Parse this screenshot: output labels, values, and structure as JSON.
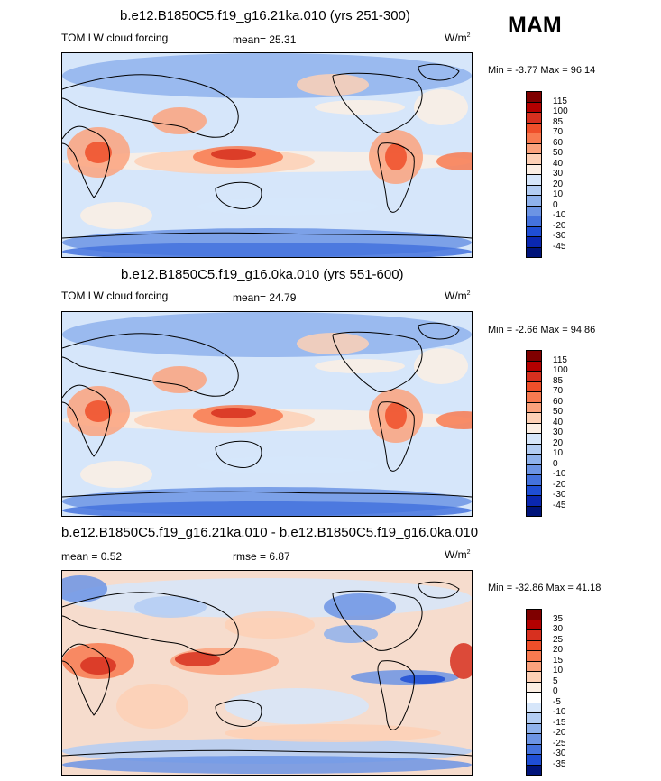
{
  "season": "MAM",
  "units_suffix": "2",
  "panels": [
    {
      "title": "b.e12.B1850C5.f19_g16.21ka.010 (yrs 251-300)",
      "left_label": "TOM LW cloud forcing",
      "mid_label": "mean=  25.31",
      "units": "W/m",
      "minmax": "Min =  -3.77 Max =  96.14"
    },
    {
      "title": "b.e12.B1850C5.f19_g16.0ka.010 (yrs 551-600)",
      "left_label": "TOM LW cloud forcing",
      "mid_label": "mean=  24.79",
      "units": "W/m",
      "minmax": "Min =  -2.66 Max =  94.86"
    },
    {
      "title": "b.e12.B1850C5.f19_g16.21ka.010 - b.e12.B1850C5.f19_g16.0ka.010",
      "left_label": "mean =   0.52",
      "mid_label": "rmse =   6.87",
      "units": "W/m",
      "minmax": "Min = -32.86 Max =  41.18"
    }
  ],
  "chart_data": [
    {
      "type": "heatmap",
      "title": "b.e12.B1850C5.f19_g16.21ka.010 (yrs 251-300)",
      "variable": "TOM LW cloud forcing",
      "mean": 25.31,
      "min": -3.77,
      "max": 96.14,
      "units": "W/m2",
      "colorbar_levels": [
        "115",
        "100",
        "85",
        "70",
        "60",
        "50",
        "40",
        "30",
        "20",
        "10",
        "0",
        "-10",
        "-20",
        "-30",
        "-45"
      ],
      "colors": [
        "#7f0000",
        "#b30000",
        "#d7301f",
        "#ef4f2a",
        "#f87a50",
        "#fba27c",
        "#fdd0b5",
        "#fbeee3",
        "#d6e6fa",
        "#b3cdf3",
        "#8fb2ec",
        "#6c94e4",
        "#4472dd",
        "#1f4ed4",
        "#0a27b0",
        "#00147a"
      ]
    },
    {
      "type": "heatmap",
      "title": "b.e12.B1850C5.f19_g16.0ka.010 (yrs 551-600)",
      "variable": "TOM LW cloud forcing",
      "mean": 24.79,
      "min": -2.66,
      "max": 94.86,
      "units": "W/m2",
      "colorbar_levels": [
        "115",
        "100",
        "85",
        "70",
        "60",
        "50",
        "40",
        "30",
        "20",
        "10",
        "0",
        "-10",
        "-20",
        "-30",
        "-45"
      ],
      "colors": [
        "#7f0000",
        "#b30000",
        "#d7301f",
        "#ef4f2a",
        "#f87a50",
        "#fba27c",
        "#fdd0b5",
        "#fbeee3",
        "#d6e6fa",
        "#b3cdf3",
        "#8fb2ec",
        "#6c94e4",
        "#4472dd",
        "#1f4ed4",
        "#0a27b0",
        "#00147a"
      ]
    },
    {
      "type": "heatmap",
      "title": "b.e12.B1850C5.f19_g16.21ka.010 - b.e12.B1850C5.f19_g16.0ka.010",
      "mean": 0.52,
      "rmse": 6.87,
      "min": -32.86,
      "max": 41.18,
      "units": "W/m2",
      "colorbar_levels": [
        "35",
        "30",
        "25",
        "20",
        "15",
        "10",
        "5",
        "0",
        "-5",
        "-10",
        "-15",
        "-20",
        "-25",
        "-30",
        "-35"
      ],
      "colors": [
        "#7f0000",
        "#b30000",
        "#d7301f",
        "#ef4f2a",
        "#f87a50",
        "#fba27c",
        "#fdd0b5",
        "#fbeee3",
        "#ffffff",
        "#d6e6fa",
        "#b3cdf3",
        "#8fb2ec",
        "#6c94e4",
        "#4472dd",
        "#1f4ed4",
        "#00147a"
      ]
    }
  ]
}
